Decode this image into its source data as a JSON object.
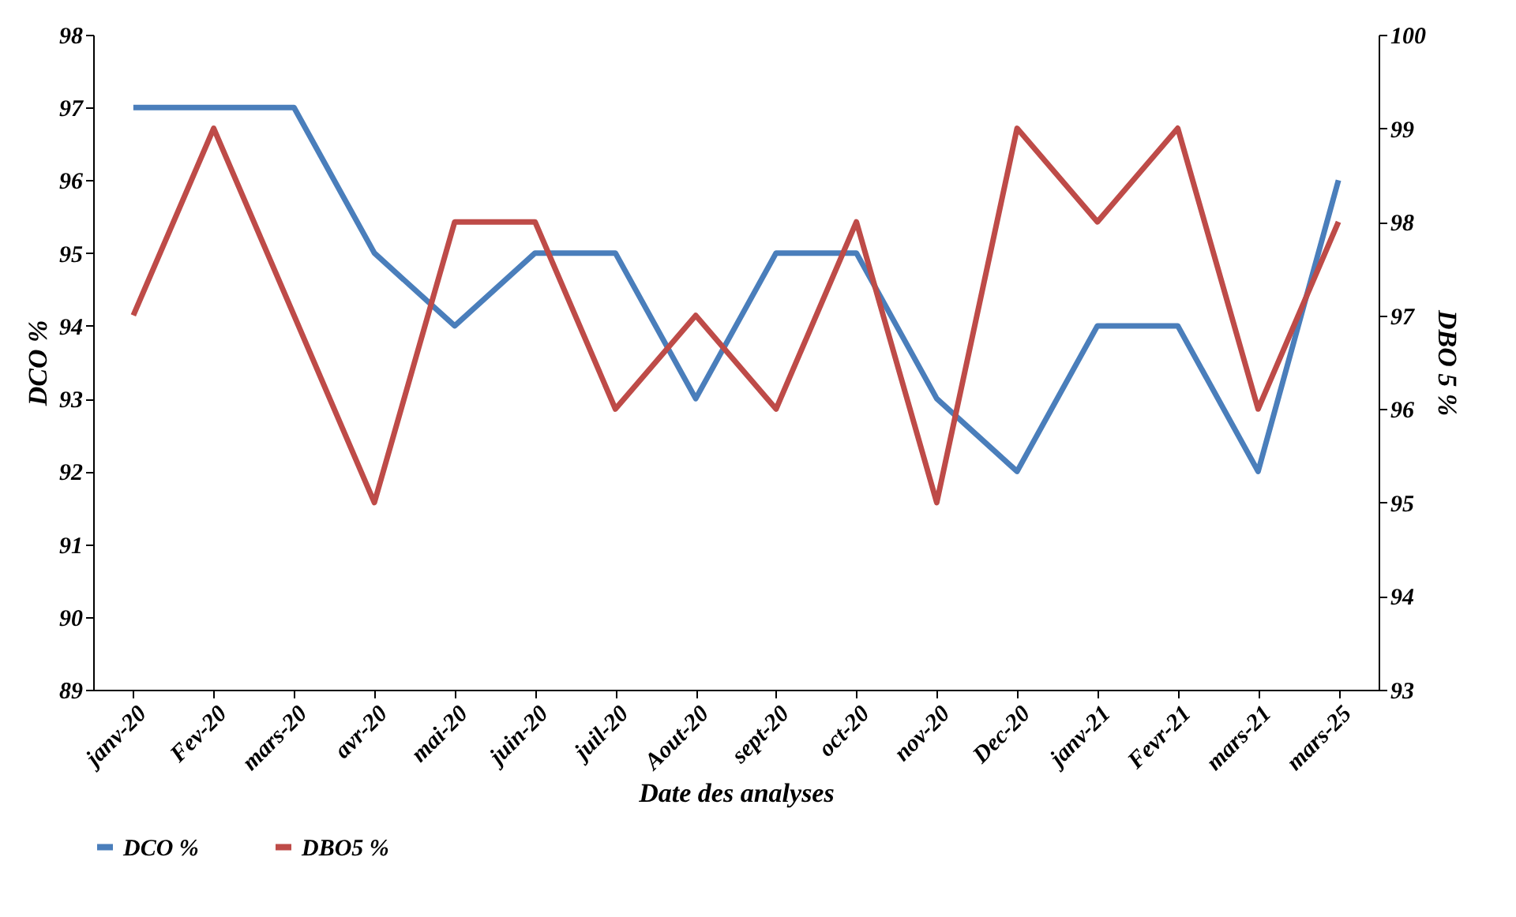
{
  "chart_data": {
    "type": "line",
    "xlabel": "Date des analyses",
    "ylabel": "DCO %",
    "y2label": "DBO 5 %",
    "categories": [
      "janv-20",
      "Fev-20",
      "mars-20",
      "avr-20",
      "mai-20",
      "juin-20",
      "juil-20",
      "Aout-20",
      "sept-20",
      "oct-20",
      "nov-20",
      "Dec-20",
      "janv-21",
      "Fevr-21",
      "mars-21",
      "mars-25"
    ],
    "series": [
      {
        "name": "DCO %",
        "color": "#4a7ebb",
        "values": [
          97,
          97,
          97,
          95,
          94,
          95,
          95,
          93,
          95,
          95,
          93,
          92,
          94,
          94,
          92,
          96
        ]
      },
      {
        "name": "DBO5 %",
        "color": "#be4b48",
        "axis": "y2",
        "values": [
          97,
          99,
          97,
          95,
          98,
          98,
          96,
          97,
          96,
          98,
          95,
          99,
          98,
          99,
          96,
          98
        ]
      }
    ],
    "ylim": [
      89,
      98
    ],
    "yticks": [
      89,
      90,
      91,
      92,
      93,
      94,
      95,
      96,
      97,
      98
    ],
    "y2lim": [
      93,
      100
    ],
    "y2ticks": [
      93,
      94,
      95,
      96,
      97,
      98,
      99,
      100
    ],
    "grid": false,
    "legend": "bottom",
    "marker": "none",
    "line_style": "solid"
  }
}
